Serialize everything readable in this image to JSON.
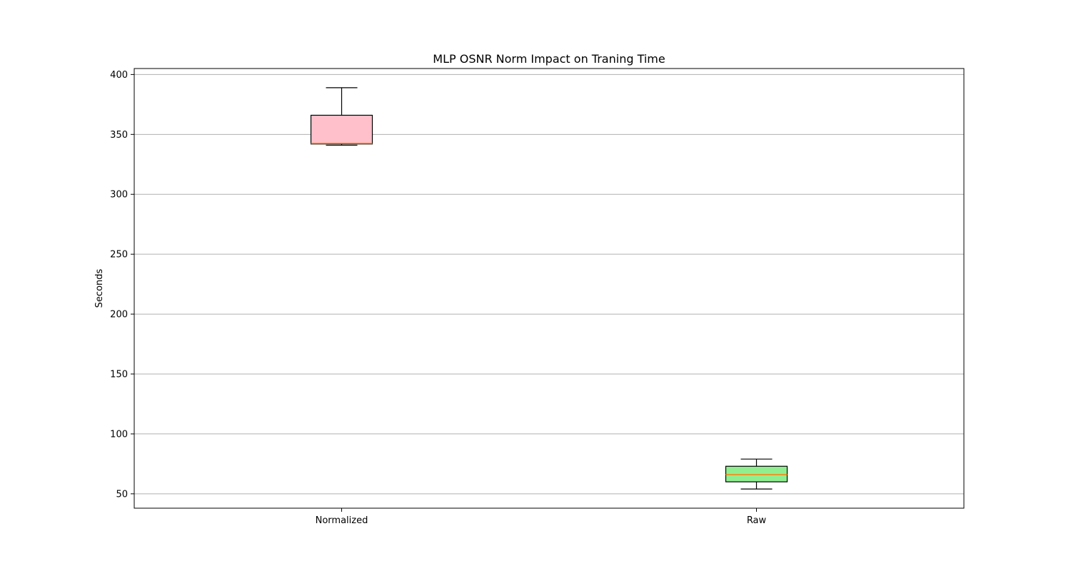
{
  "chart_data": {
    "type": "box",
    "title": "MLP OSNR Norm Impact on Traning Time",
    "xlabel": "",
    "ylabel": "Seconds",
    "ylim": [
      38,
      405
    ],
    "yticks": [
      50,
      100,
      150,
      200,
      250,
      300,
      350,
      400
    ],
    "grid": "horizontal",
    "categories": [
      "Normalized",
      "Raw"
    ],
    "boxes": [
      {
        "category": "Normalized",
        "whisker_low": 341,
        "q1": 342,
        "median": 342.5,
        "q3": 366,
        "whisker_high": 389,
        "fill": "#ffc0cb"
      },
      {
        "category": "Raw",
        "whisker_low": 54,
        "q1": 60,
        "median": 66,
        "q3": 73,
        "whisker_high": 79,
        "fill": "#90ee90"
      }
    ],
    "median_color": "#ff7f0e"
  }
}
